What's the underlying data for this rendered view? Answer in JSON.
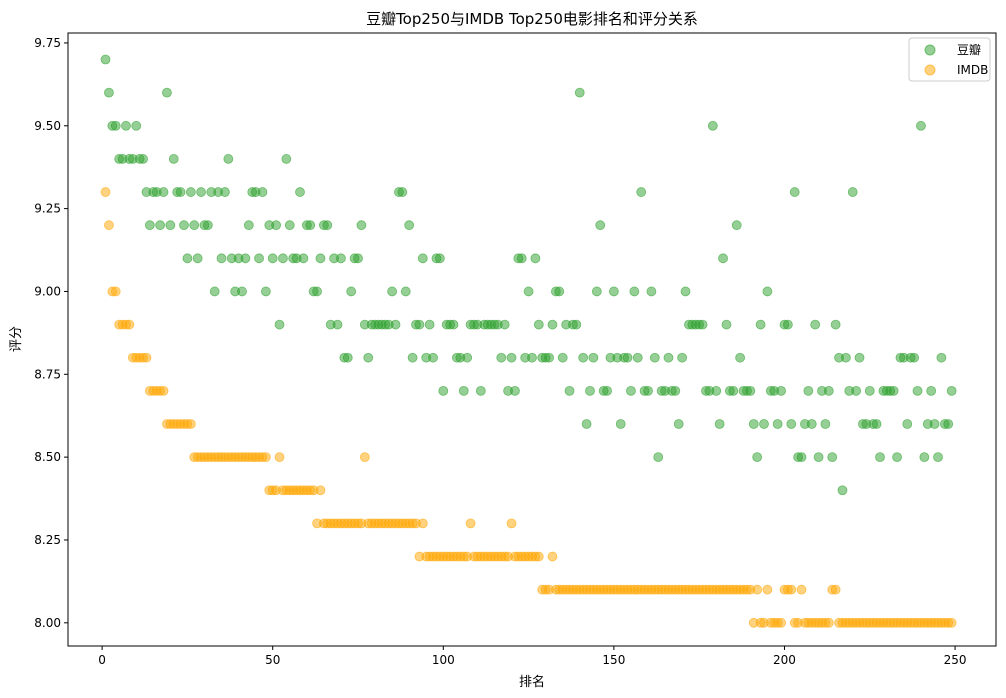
{
  "chart_data": {
    "type": "scatter",
    "title": "豆瓣Top250与IMDB Top250电影排名和评分关系",
    "xlabel": "排名",
    "ylabel": "评分",
    "xlim": [
      -10,
      262
    ],
    "ylim": [
      7.93,
      9.78
    ],
    "xticks": [
      0,
      50,
      100,
      150,
      200,
      250
    ],
    "yticks": [
      8.0,
      8.25,
      8.5,
      8.75,
      9.0,
      9.25,
      9.5,
      9.75
    ],
    "ytick_labels": [
      "8.00",
      "8.25",
      "8.50",
      "8.75",
      "9.00",
      "9.25",
      "9.50",
      "9.75"
    ],
    "xtick_labels": [
      "0",
      "50",
      "100",
      "150",
      "200",
      "250"
    ],
    "legend_position": "top-right",
    "grid": false,
    "series": [
      {
        "name": "豆瓣",
        "color": "#2ca02c",
        "values": [
          9.7,
          9.6,
          9.5,
          9.5,
          9.4,
          9.4,
          9.5,
          9.4,
          9.4,
          9.5,
          9.4,
          9.4,
          9.3,
          9.2,
          9.3,
          9.3,
          9.2,
          9.3,
          9.6,
          9.2,
          9.4,
          9.3,
          9.3,
          9.2,
          9.1,
          9.3,
          9.2,
          9.1,
          9.3,
          9.2,
          9.2,
          9.3,
          9.0,
          9.3,
          9.1,
          9.3,
          9.4,
          9.1,
          9.0,
          9.1,
          9.0,
          9.1,
          9.2,
          9.3,
          9.3,
          9.1,
          9.3,
          9.0,
          9.2,
          9.1,
          9.2,
          8.9,
          9.1,
          9.4,
          9.2,
          9.1,
          9.1,
          9.3,
          9.1,
          9.2,
          9.2,
          9.0,
          9.0,
          9.1,
          9.2,
          9.2,
          8.9,
          9.1,
          8.9,
          9.1,
          8.8,
          8.8,
          9.0,
          9.1,
          9.1,
          9.2,
          8.9,
          8.8,
          8.9,
          8.9,
          8.9,
          8.9,
          8.9,
          8.9,
          9.0,
          8.9,
          9.3,
          9.3,
          9.0,
          9.2,
          8.8,
          8.9,
          8.9,
          9.1,
          8.8,
          8.9,
          8.8,
          9.1,
          9.1,
          8.7,
          8.9,
          8.9,
          8.9,
          8.8,
          8.8,
          8.7,
          8.8,
          8.9,
          8.9,
          8.9,
          8.7,
          8.9,
          8.9,
          8.9,
          8.9,
          8.9,
          8.8,
          8.9,
          8.7,
          8.8,
          8.7,
          9.1,
          9.1,
          8.8,
          9.0,
          8.8,
          9.1,
          8.9,
          8.8,
          8.8,
          8.8,
          8.9,
          9.0,
          9.0,
          8.8,
          8.9,
          8.7,
          8.9,
          8.9,
          9.6,
          8.8,
          8.6,
          8.7,
          8.8,
          9.0,
          9.2,
          8.7,
          8.7,
          8.8,
          9.0,
          8.8,
          8.6,
          8.8,
          8.8,
          8.7,
          9.0,
          8.8,
          9.3,
          8.7,
          8.7,
          9.0,
          8.8,
          8.5,
          8.7,
          8.7,
          8.8,
          8.7,
          8.7,
          8.6,
          8.8,
          9.0,
          8.9,
          8.9,
          8.9,
          8.9,
          8.9,
          8.7,
          8.7,
          9.5,
          8.7,
          8.6,
          9.1,
          8.9,
          8.7,
          8.7,
          9.2,
          8.8,
          8.7,
          8.7,
          8.7,
          8.6,
          8.5,
          8.9,
          8.6,
          9.0,
          8.7,
          8.7,
          8.6,
          8.7,
          8.9,
          8.9,
          8.6,
          9.3,
          8.5,
          8.5,
          8.6,
          8.7,
          8.6,
          8.9,
          8.5,
          8.7,
          8.6,
          8.7,
          8.5,
          8.9,
          8.8,
          8.4,
          8.8,
          8.7,
          9.3,
          8.7,
          8.8,
          8.6,
          8.6,
          8.7,
          8.6,
          8.6,
          8.5,
          8.7,
          8.7,
          8.7,
          8.7,
          8.5,
          8.8,
          8.8,
          8.6,
          8.8,
          8.8,
          8.7,
          9.5,
          8.5,
          8.6,
          8.7,
          8.6,
          8.5,
          8.8,
          8.6,
          8.6,
          8.7
        ]
      },
      {
        "name": "IMDB",
        "color": "#ffa500",
        "values": [
          9.3,
          9.2,
          9.0,
          9.0,
          8.9,
          8.9,
          8.9,
          8.9,
          8.8,
          8.8,
          8.8,
          8.8,
          8.8,
          8.7,
          8.7,
          8.7,
          8.7,
          8.7,
          8.6,
          8.6,
          8.6,
          8.6,
          8.6,
          8.6,
          8.6,
          8.6,
          8.5,
          8.5,
          8.5,
          8.5,
          8.5,
          8.5,
          8.5,
          8.5,
          8.5,
          8.5,
          8.5,
          8.5,
          8.5,
          8.5,
          8.5,
          8.5,
          8.5,
          8.5,
          8.5,
          8.5,
          8.5,
          8.5,
          8.4,
          8.4,
          8.4,
          8.5,
          8.4,
          8.4,
          8.4,
          8.4,
          8.4,
          8.4,
          8.4,
          8.4,
          8.4,
          8.4,
          8.3,
          8.4,
          8.3,
          8.3,
          8.3,
          8.3,
          8.3,
          8.3,
          8.3,
          8.3,
          8.3,
          8.3,
          8.3,
          8.3,
          8.5,
          8.3,
          8.3,
          8.3,
          8.3,
          8.3,
          8.3,
          8.3,
          8.3,
          8.3,
          8.3,
          8.3,
          8.3,
          8.3,
          8.3,
          8.3,
          8.2,
          8.3,
          8.2,
          8.2,
          8.2,
          8.2,
          8.2,
          8.2,
          8.2,
          8.2,
          8.2,
          8.2,
          8.2,
          8.2,
          8.2,
          8.3,
          8.2,
          8.2,
          8.2,
          8.2,
          8.2,
          8.2,
          8.2,
          8.2,
          8.2,
          8.2,
          8.2,
          8.3,
          8.2,
          8.2,
          8.2,
          8.2,
          8.2,
          8.2,
          8.2,
          8.2,
          8.1,
          8.1,
          8.1,
          8.2,
          8.1,
          8.1,
          8.1,
          8.1,
          8.1,
          8.1,
          8.1,
          8.1,
          8.1,
          8.1,
          8.1,
          8.1,
          8.1,
          8.1,
          8.1,
          8.1,
          8.1,
          8.1,
          8.1,
          8.1,
          8.1,
          8.1,
          8.1,
          8.1,
          8.1,
          8.1,
          8.1,
          8.1,
          8.1,
          8.1,
          8.1,
          8.1,
          8.1,
          8.1,
          8.1,
          8.1,
          8.1,
          8.1,
          8.1,
          8.1,
          8.1,
          8.1,
          8.1,
          8.1,
          8.1,
          8.1,
          8.1,
          8.1,
          8.1,
          8.1,
          8.1,
          8.1,
          8.1,
          8.1,
          8.1,
          8.1,
          8.1,
          8.1,
          8.0,
          8.1,
          8.0,
          8.0,
          8.1,
          8.0,
          8.0,
          8.0,
          8.0,
          8.1,
          8.1,
          8.1,
          8.0,
          8.0,
          8.1,
          8.0,
          8.0,
          8.0,
          8.0,
          8.0,
          8.0,
          8.0,
          8.0,
          8.1,
          8.1,
          8.0,
          8.0,
          8.0,
          8.0,
          8.0,
          8.0,
          8.0,
          8.0,
          8.0,
          8.0,
          8.0,
          8.0,
          8.0,
          8.0,
          8.0,
          8.0,
          8.0,
          8.0,
          8.0,
          8.0,
          8.0,
          8.0,
          8.0,
          8.0,
          8.0,
          8.0,
          8.0,
          8.0,
          8.0,
          8.0,
          8.0,
          8.0,
          8.0,
          8.0
        ]
      }
    ]
  }
}
